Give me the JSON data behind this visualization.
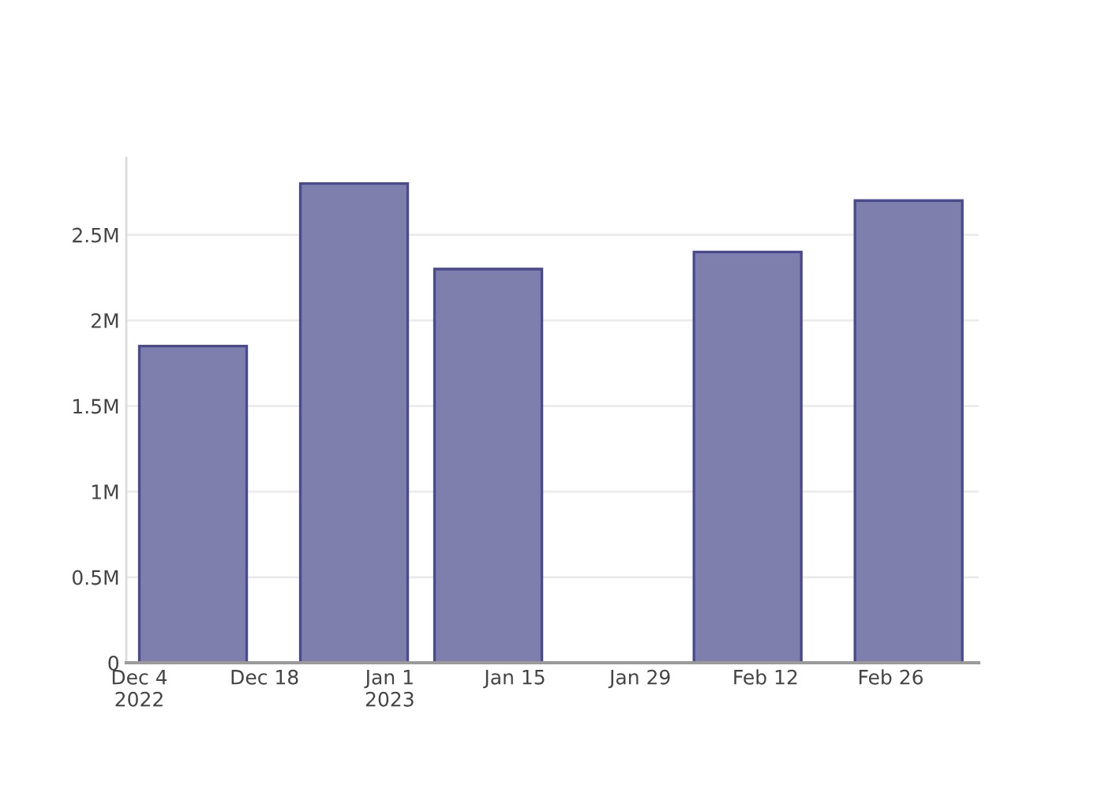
{
  "chart_data": {
    "type": "bar",
    "x": [
      "2022-12-10",
      "2022-12-28",
      "2023-01-12",
      "2023-02-10",
      "2023-02-28"
    ],
    "values": [
      1850000,
      2800000,
      2300000,
      2400000,
      2700000
    ],
    "color": "#7f7fae",
    "xlim": [
      "2022-12-02T13:00",
      "2023-03-07T20:00"
    ],
    "xticks": [
      {
        "value": "2022-12-04",
        "label": "Dec 4\n2022"
      },
      {
        "value": "2022-12-18",
        "label": "Dec 18"
      },
      {
        "value": "2023-01-01",
        "label": "Jan 1\n2023"
      },
      {
        "value": "2023-01-15",
        "label": "Jan 15"
      },
      {
        "value": "2023-01-29",
        "label": "Jan 29"
      },
      {
        "value": "2023-02-12",
        "label": "Feb 12"
      },
      {
        "value": "2023-02-26",
        "label": "Feb 26"
      }
    ],
    "ylim": [
      0,
      2950000
    ],
    "yticks": [
      0,
      {
        "value": 500000,
        "label": "0.5M"
      },
      {
        "value": 1000000,
        "label": "1M"
      },
      {
        "value": 1500000,
        "label": "1.5M"
      },
      {
        "value": 2000000,
        "label": "2M"
      },
      {
        "value": 2500000,
        "label": "2.5M"
      }
    ],
    "grid": "y"
  }
}
